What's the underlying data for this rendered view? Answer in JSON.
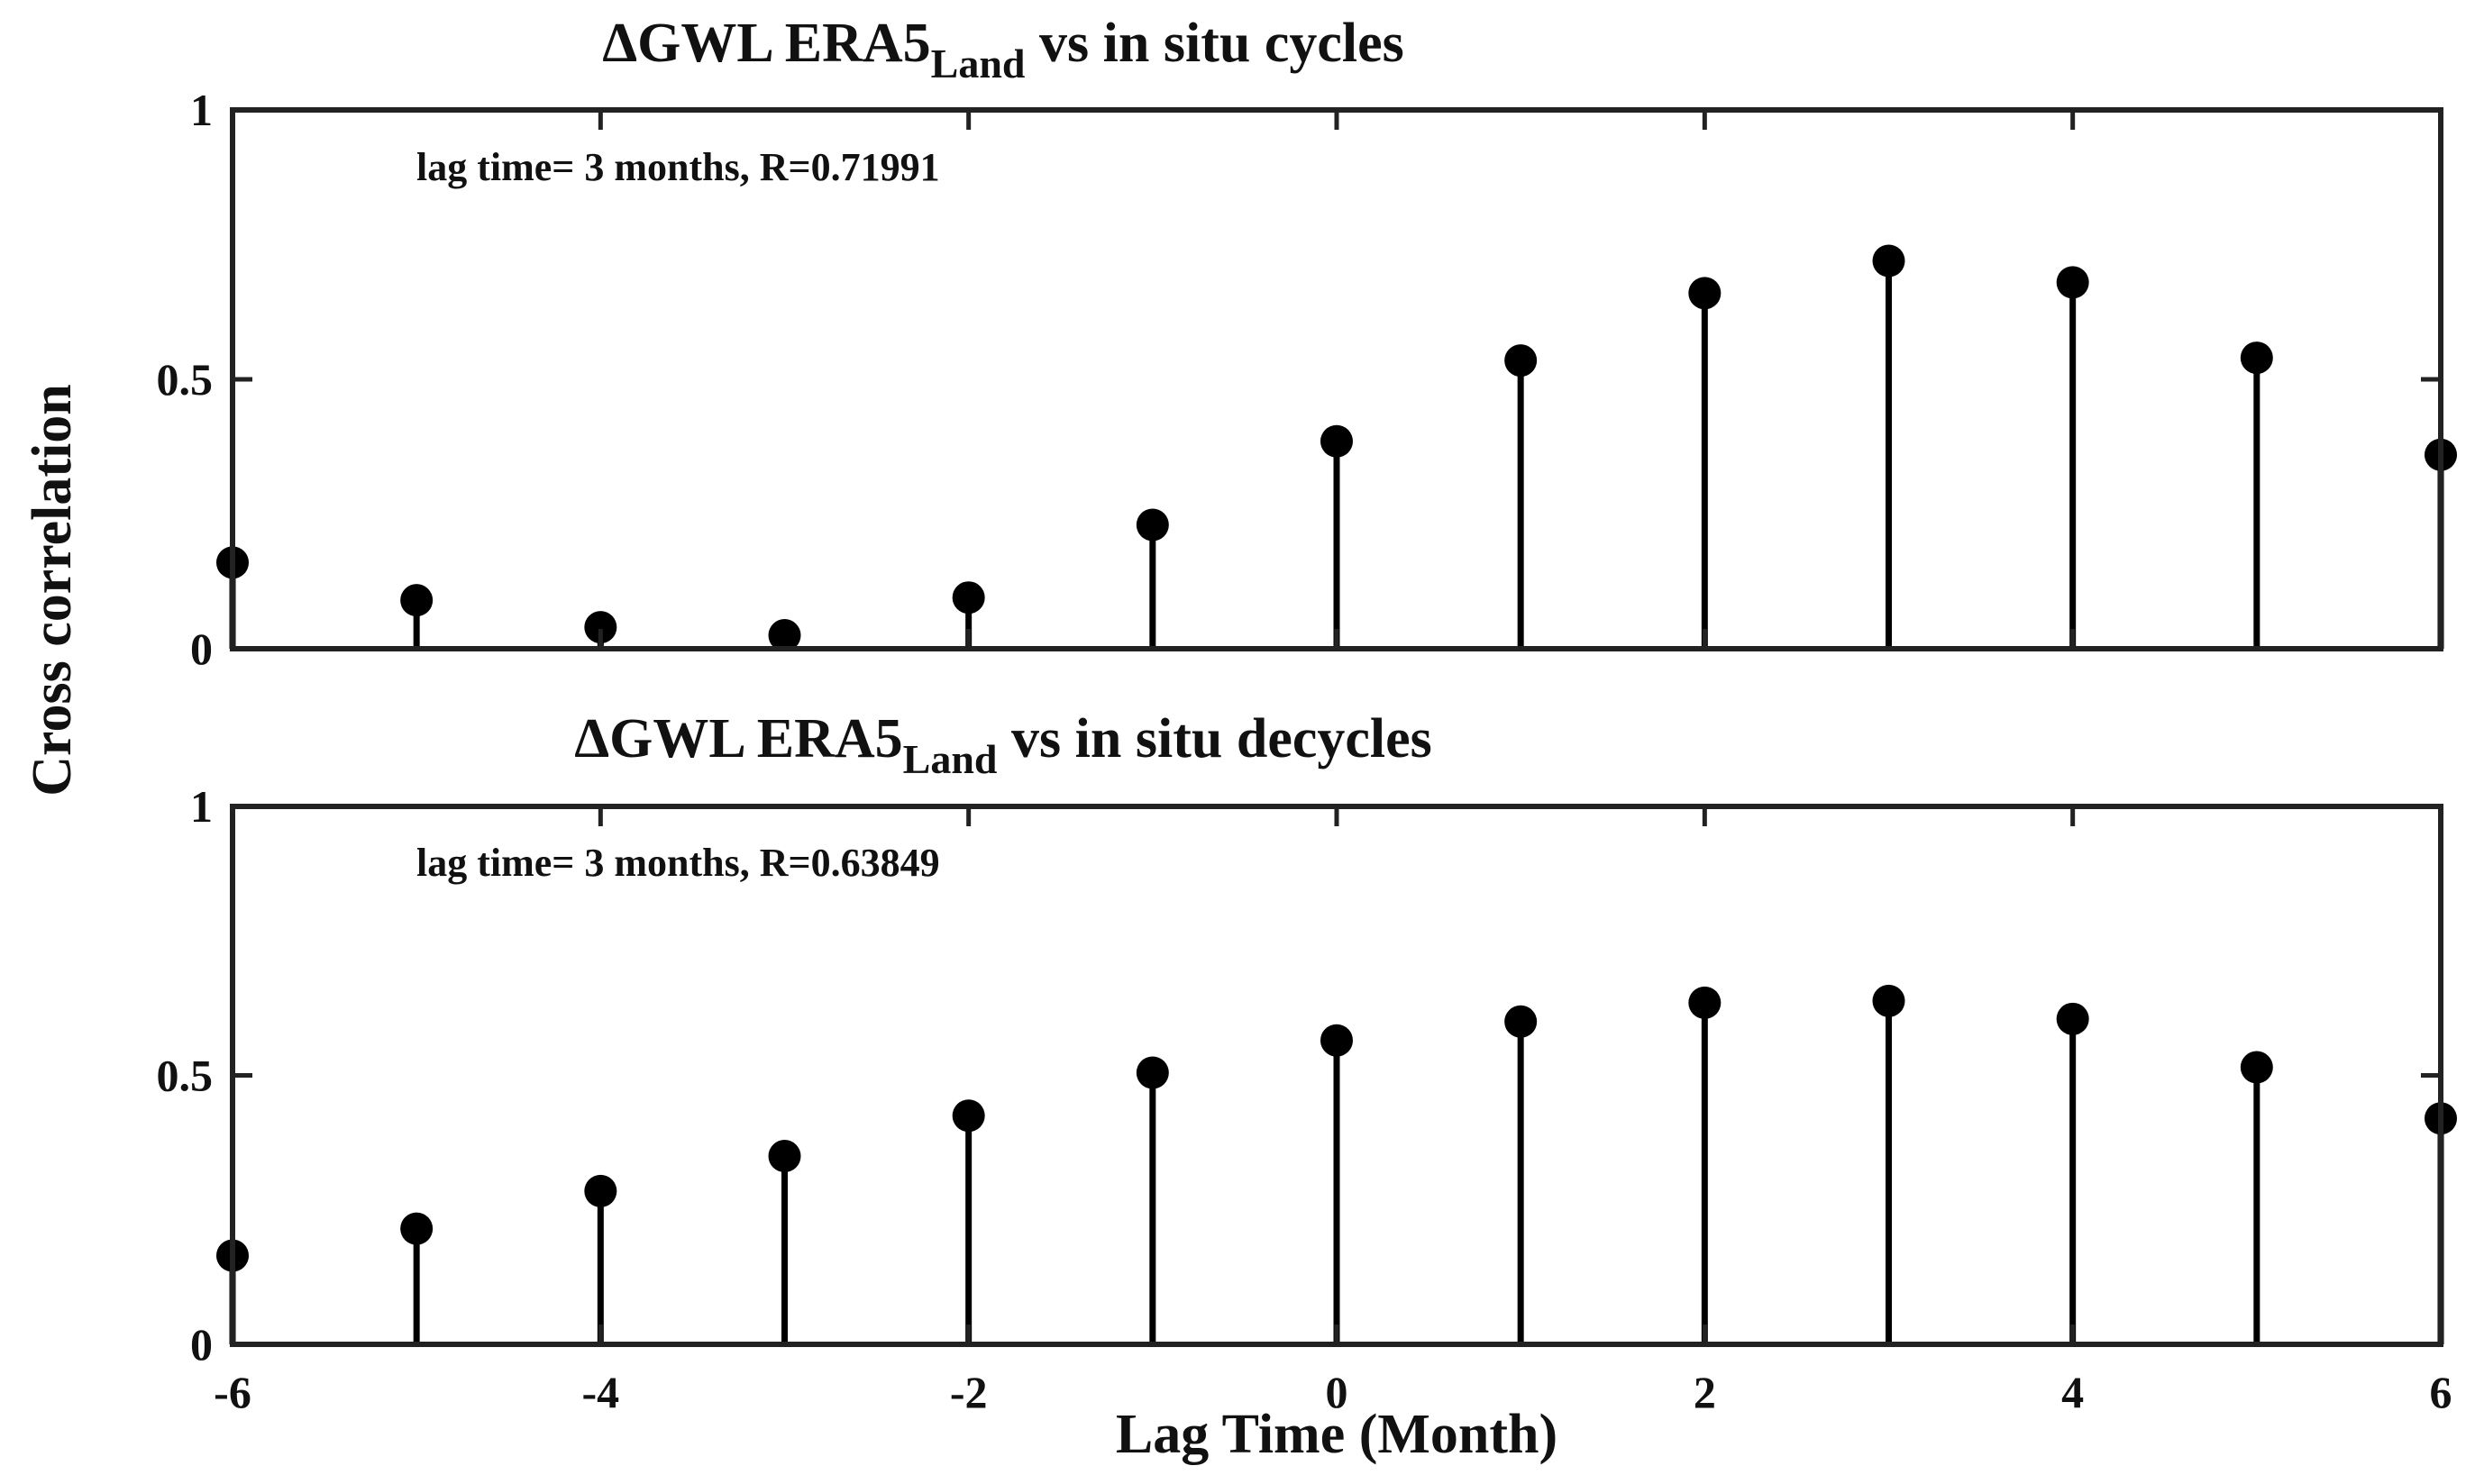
{
  "chart_data": [
    {
      "type": "stem",
      "title": {
        "prefix": "ΔGWL ERA5",
        "subscript": "Land",
        "suffix": " vs in situ cycles"
      },
      "annotation": "lag time= 3 months, R=0.71991",
      "x": [
        -6,
        -5,
        -4,
        -3,
        -2,
        -1,
        0,
        1,
        2,
        3,
        4,
        5,
        6
      ],
      "values": [
        0.16,
        0.09,
        0.04,
        0.025,
        0.095,
        0.23,
        0.385,
        0.535,
        0.66,
        0.71991,
        0.68,
        0.54,
        0.36
      ],
      "xlim": [
        -6,
        6
      ],
      "ylim": [
        0,
        1
      ],
      "yticks": [
        0,
        0.5,
        1
      ],
      "ytick_labels": [
        "0",
        "0.5",
        "1"
      ]
    },
    {
      "type": "stem",
      "title": {
        "prefix": "ΔGWL ERA5",
        "subscript": "Land",
        "suffix": " vs in situ decycles"
      },
      "annotation": "lag time= 3 months, R=0.63849",
      "x": [
        -6,
        -5,
        -4,
        -3,
        -2,
        -1,
        0,
        1,
        2,
        3,
        4,
        5,
        6
      ],
      "values": [
        0.165,
        0.215,
        0.285,
        0.35,
        0.425,
        0.505,
        0.565,
        0.6,
        0.635,
        0.63849,
        0.605,
        0.515,
        0.42
      ],
      "xlim": [
        -6,
        6
      ],
      "ylim": [
        0,
        1
      ],
      "yticks": [
        0,
        0.5,
        1
      ],
      "ytick_labels": [
        "0",
        "0.5",
        "1"
      ],
      "xticks": [
        -6,
        -4,
        -2,
        0,
        2,
        4,
        6
      ],
      "xtick_labels": [
        "-6",
        "-4",
        "-2",
        "0",
        "2",
        "4",
        "6"
      ]
    }
  ],
  "xlabel": "Lag Time (Month)",
  "ylabel": "Cross correlation",
  "colors": {
    "stem": "#000000",
    "axes": "#222222"
  }
}
